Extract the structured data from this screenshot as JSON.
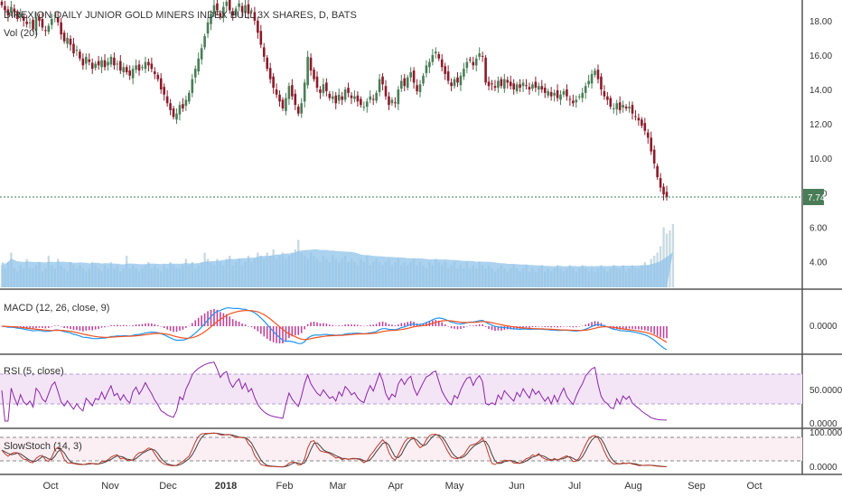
{
  "chart_data": [
    {
      "type": "candlestick",
      "title": "DIREXION DAILY JUNIOR GOLD MINERS INDEX BULL 3X SHARES, D, BATS",
      "volume_label": "Vol (20)",
      "last_price_label": "7.74",
      "last_price": 7.74,
      "ylim": [
        2.5,
        19.2
      ],
      "ytick_labels": [
        "18.00",
        "16.00",
        "14.00",
        "12.00",
        "10.00",
        "8.00",
        "6.00",
        "4.00"
      ],
      "ytick_values": [
        18,
        16,
        14,
        12,
        10,
        8,
        6,
        4
      ],
      "xtick_labels": [
        "Oct",
        "Nov",
        "Dec",
        "2018",
        "Feb",
        "Mar",
        "Apr",
        "May",
        "Jun",
        "Jul",
        "Aug",
        "Sep",
        "Oct"
      ],
      "closes": [
        18.9,
        18.6,
        18.3,
        18.8,
        18.5,
        18.1,
        18.4,
        18.0,
        17.8,
        17.9,
        17.5,
        18.2,
        18.0,
        17.6,
        17.4,
        17.7,
        18.1,
        18.3,
        17.9,
        17.2,
        16.8,
        17.0,
        16.6,
        16.1,
        16.3,
        15.8,
        15.4,
        15.9,
        15.6,
        15.2,
        15.5,
        15.4,
        15.7,
        15.3,
        15.6,
        15.9,
        15.4,
        15.5,
        15.1,
        15.3,
        15.0,
        14.8,
        15.2,
        15.4,
        15.1,
        15.3,
        15.6,
        15.4,
        15.2,
        14.9,
        14.6,
        14.0,
        13.7,
        13.2,
        12.8,
        12.4,
        12.6,
        13.1,
        12.9,
        13.4,
        13.8,
        14.6,
        15.2,
        15.8,
        16.4,
        17.1,
        17.9,
        18.4,
        18.9,
        18.6,
        18.2,
        18.8,
        19.1,
        18.6,
        18.3,
        18.7,
        19.0,
        18.5,
        18.9,
        18.4,
        18.6,
        18.0,
        17.3,
        16.6,
        15.9,
        15.2,
        14.6,
        14.1,
        13.7,
        13.3,
        12.9,
        13.5,
        14.2,
        13.6,
        13.1,
        12.6,
        13.2,
        14.4,
        15.9,
        15.1,
        14.6,
        14.1,
        13.8,
        14.3,
        13.9,
        13.5,
        13.6,
        13.2,
        13.7,
        13.4,
        14.0,
        13.8,
        13.5,
        13.6,
        13.3,
        13.1,
        13.0,
        13.3,
        13.6,
        13.4,
        13.8,
        14.6,
        14.3,
        13.6,
        13.1,
        13.4,
        13.2,
        14.0,
        14.5,
        14.2,
        14.7,
        15.0,
        14.4,
        13.9,
        14.3,
        14.8,
        15.4,
        15.6,
        16.0,
        16.2,
        15.8,
        15.3,
        14.9,
        14.5,
        14.2,
        14.6,
        14.4,
        14.8,
        15.2,
        15.6,
        15.7,
        15.4,
        15.8,
        16.1,
        15.9,
        14.4,
        14.2,
        14.3,
        14.1,
        14.5,
        14.2,
        14.6,
        14.4,
        14.2,
        14.0,
        14.3,
        14.1,
        14.4,
        14.2,
        14.0,
        14.3,
        14.1,
        14.2,
        14.0,
        13.8,
        13.9,
        13.6,
        13.8,
        13.5,
        13.7,
        13.9,
        13.6,
        13.4,
        13.2,
        13.4,
        13.6,
        13.8,
        14.2,
        14.5,
        14.9,
        15.1,
        14.6,
        14.0,
        13.6,
        13.4,
        13.0,
        12.9,
        13.2,
        12.8,
        13.1,
        12.9,
        13.0,
        12.6,
        12.4,
        12.2,
        11.9,
        11.6,
        11.2,
        10.4,
        9.7,
        8.9,
        8.3,
        7.9,
        7.74
      ],
      "volume": [
        0.35,
        0.3,
        0.4,
        0.55,
        0.3,
        0.25,
        0.35,
        0.3,
        0.45,
        0.3,
        0.3,
        0.35,
        0.4,
        0.25,
        0.3,
        0.5,
        0.35,
        0.3,
        0.45,
        0.35,
        0.3,
        0.25,
        0.4,
        0.35,
        0.3,
        0.35,
        0.3,
        0.25,
        0.3,
        0.4,
        0.35,
        0.3,
        0.25,
        0.35,
        0.3,
        0.4,
        0.3,
        0.35,
        0.25,
        0.3,
        0.5,
        0.3,
        0.35,
        0.3,
        0.25,
        0.3,
        0.35,
        0.4,
        0.3,
        0.35,
        0.3,
        0.25,
        0.35,
        0.3,
        0.4,
        0.35,
        0.3,
        0.3,
        0.35,
        0.45,
        0.35,
        0.4,
        0.3,
        0.35,
        0.4,
        0.55,
        0.45,
        0.4,
        0.35,
        0.45,
        0.4,
        0.35,
        0.45,
        0.5,
        0.35,
        0.4,
        0.45,
        0.35,
        0.4,
        0.5,
        0.4,
        0.45,
        0.55,
        0.5,
        0.45,
        0.55,
        0.5,
        0.6,
        0.45,
        0.5,
        0.55,
        0.45,
        0.5,
        0.55,
        0.6,
        0.75,
        0.55,
        0.5,
        0.45,
        0.55,
        0.5,
        0.45,
        0.4,
        0.5,
        0.45,
        0.4,
        0.5,
        0.45,
        0.4,
        0.45,
        0.5,
        0.4,
        0.45,
        0.4,
        0.35,
        0.45,
        0.4,
        0.5,
        0.35,
        0.4,
        0.45,
        0.4,
        0.35,
        0.4,
        0.45,
        0.35,
        0.4,
        0.45,
        0.35,
        0.4,
        0.35,
        0.4,
        0.45,
        0.35,
        0.4,
        0.35,
        0.3,
        0.4,
        0.35,
        0.45,
        0.4,
        0.35,
        0.4,
        0.3,
        0.35,
        0.4,
        0.3,
        0.35,
        0.3,
        0.4,
        0.3,
        0.35,
        0.3,
        0.4,
        0.35,
        0.3,
        0.35,
        0.3,
        0.25,
        0.3,
        0.35,
        0.3,
        0.25,
        0.3,
        0.35,
        0.3,
        0.25,
        0.3,
        0.35,
        0.25,
        0.3,
        0.25,
        0.3,
        0.35,
        0.25,
        0.3,
        0.25,
        0.3,
        0.35,
        0.3,
        0.25,
        0.3,
        0.35,
        0.3,
        0.25,
        0.3,
        0.35,
        0.3,
        0.25,
        0.3,
        0.25,
        0.3,
        0.35,
        0.3,
        0.25,
        0.3,
        0.35,
        0.3,
        0.3,
        0.35,
        0.25,
        0.3,
        0.35,
        0.3,
        0.3,
        0.35,
        0.4,
        0.35,
        0.45,
        0.5,
        0.55,
        0.65,
        0.95,
        0.85,
        0.9,
        1.0
      ]
    },
    {
      "type": "line",
      "title": "MACD (12, 26, close, 9)",
      "ytick_labels": [
        "0.0000"
      ],
      "series": []
    },
    {
      "type": "line",
      "title": "RSI (5, close)",
      "ytick_labels": [
        "50.0000",
        "0.0000"
      ],
      "ylim": [
        0,
        100
      ],
      "band": [
        30,
        70
      ],
      "series": []
    },
    {
      "type": "line",
      "title": "SlowStoch (14, 3)",
      "ytick_labels": [
        "100.0000",
        "0.0000"
      ],
      "ylim": [
        0,
        100
      ],
      "series": []
    }
  ],
  "colors": {
    "up": "#4a7d57",
    "down": "#8a1c2b",
    "volume": "#8fc3ea",
    "volume_bar": "#c9dbe3",
    "macd": "#2196f3",
    "signal": "#f4511e",
    "hist": "#c0449a",
    "rsi": "#8e24aa",
    "stoch_k": "#c0392b",
    "stoch_d": "#424242",
    "last_price_bg": "#4a7d57"
  }
}
